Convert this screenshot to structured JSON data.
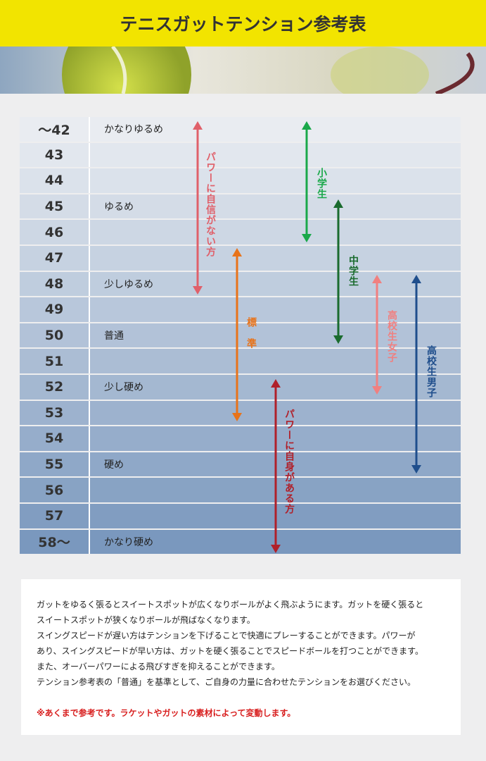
{
  "header": {
    "title": "テニスガットテンション参考表"
  },
  "table": {
    "rows": [
      {
        "tension": "～42",
        "label": "かなりゆるめ"
      },
      {
        "tension": "43",
        "label": null
      },
      {
        "tension": "44",
        "label": null
      },
      {
        "tension": "45",
        "label": "ゆるめ"
      },
      {
        "tension": "46",
        "label": null
      },
      {
        "tension": "47",
        "label": null
      },
      {
        "tension": "48",
        "label": "少しゆるめ"
      },
      {
        "tension": "49",
        "label": null
      },
      {
        "tension": "50",
        "label": "普通"
      },
      {
        "tension": "51",
        "label": null
      },
      {
        "tension": "52",
        "label": "少し硬め"
      },
      {
        "tension": "53",
        "label": null
      },
      {
        "tension": "54",
        "label": null
      },
      {
        "tension": "55",
        "label": "硬め"
      },
      {
        "tension": "56",
        "label": null
      },
      {
        "tension": "57",
        "label": null
      },
      {
        "tension": "58～",
        "label": "かなり硬め"
      }
    ]
  },
  "arrows": [
    {
      "label": "パワーに自信がない方",
      "color": "#e0606a"
    },
    {
      "label": "標準",
      "color": "#e8731a"
    },
    {
      "label": "小学生",
      "color": "#1aa84a"
    },
    {
      "label": "中学生",
      "color": "#1a6b2e"
    },
    {
      "label": "高校生女子",
      "color": "#f08080"
    },
    {
      "label": "高校生男子",
      "color": "#1f4e8c"
    },
    {
      "label": "パワーに自身がある方",
      "color": "#b0202a"
    }
  ],
  "notes": {
    "lines": [
      "ガットをゆるく張るとスイートスポットが広くなりボールがよく飛ぶようにます。ガットを硬く張ると",
      "スイートスポットが狭くなりボールが飛ばなくなります。",
      "スイングスピードが遅い方はテンションを下げることで快適にプレーすることができます。パワーが",
      "あり、スイングスピードが早い方は、ガットを硬く張ることでスピードボールを打つことができます。",
      "また、オーバーパワーによる飛びすぎを抑えることができます。",
      "テンション参考表の「普通」を基準として、ご自身の力量に合わせたテンションをお選びください。"
    ],
    "warning": "※あくまで参考です。ラケットやガットの素材によって変動します。"
  }
}
